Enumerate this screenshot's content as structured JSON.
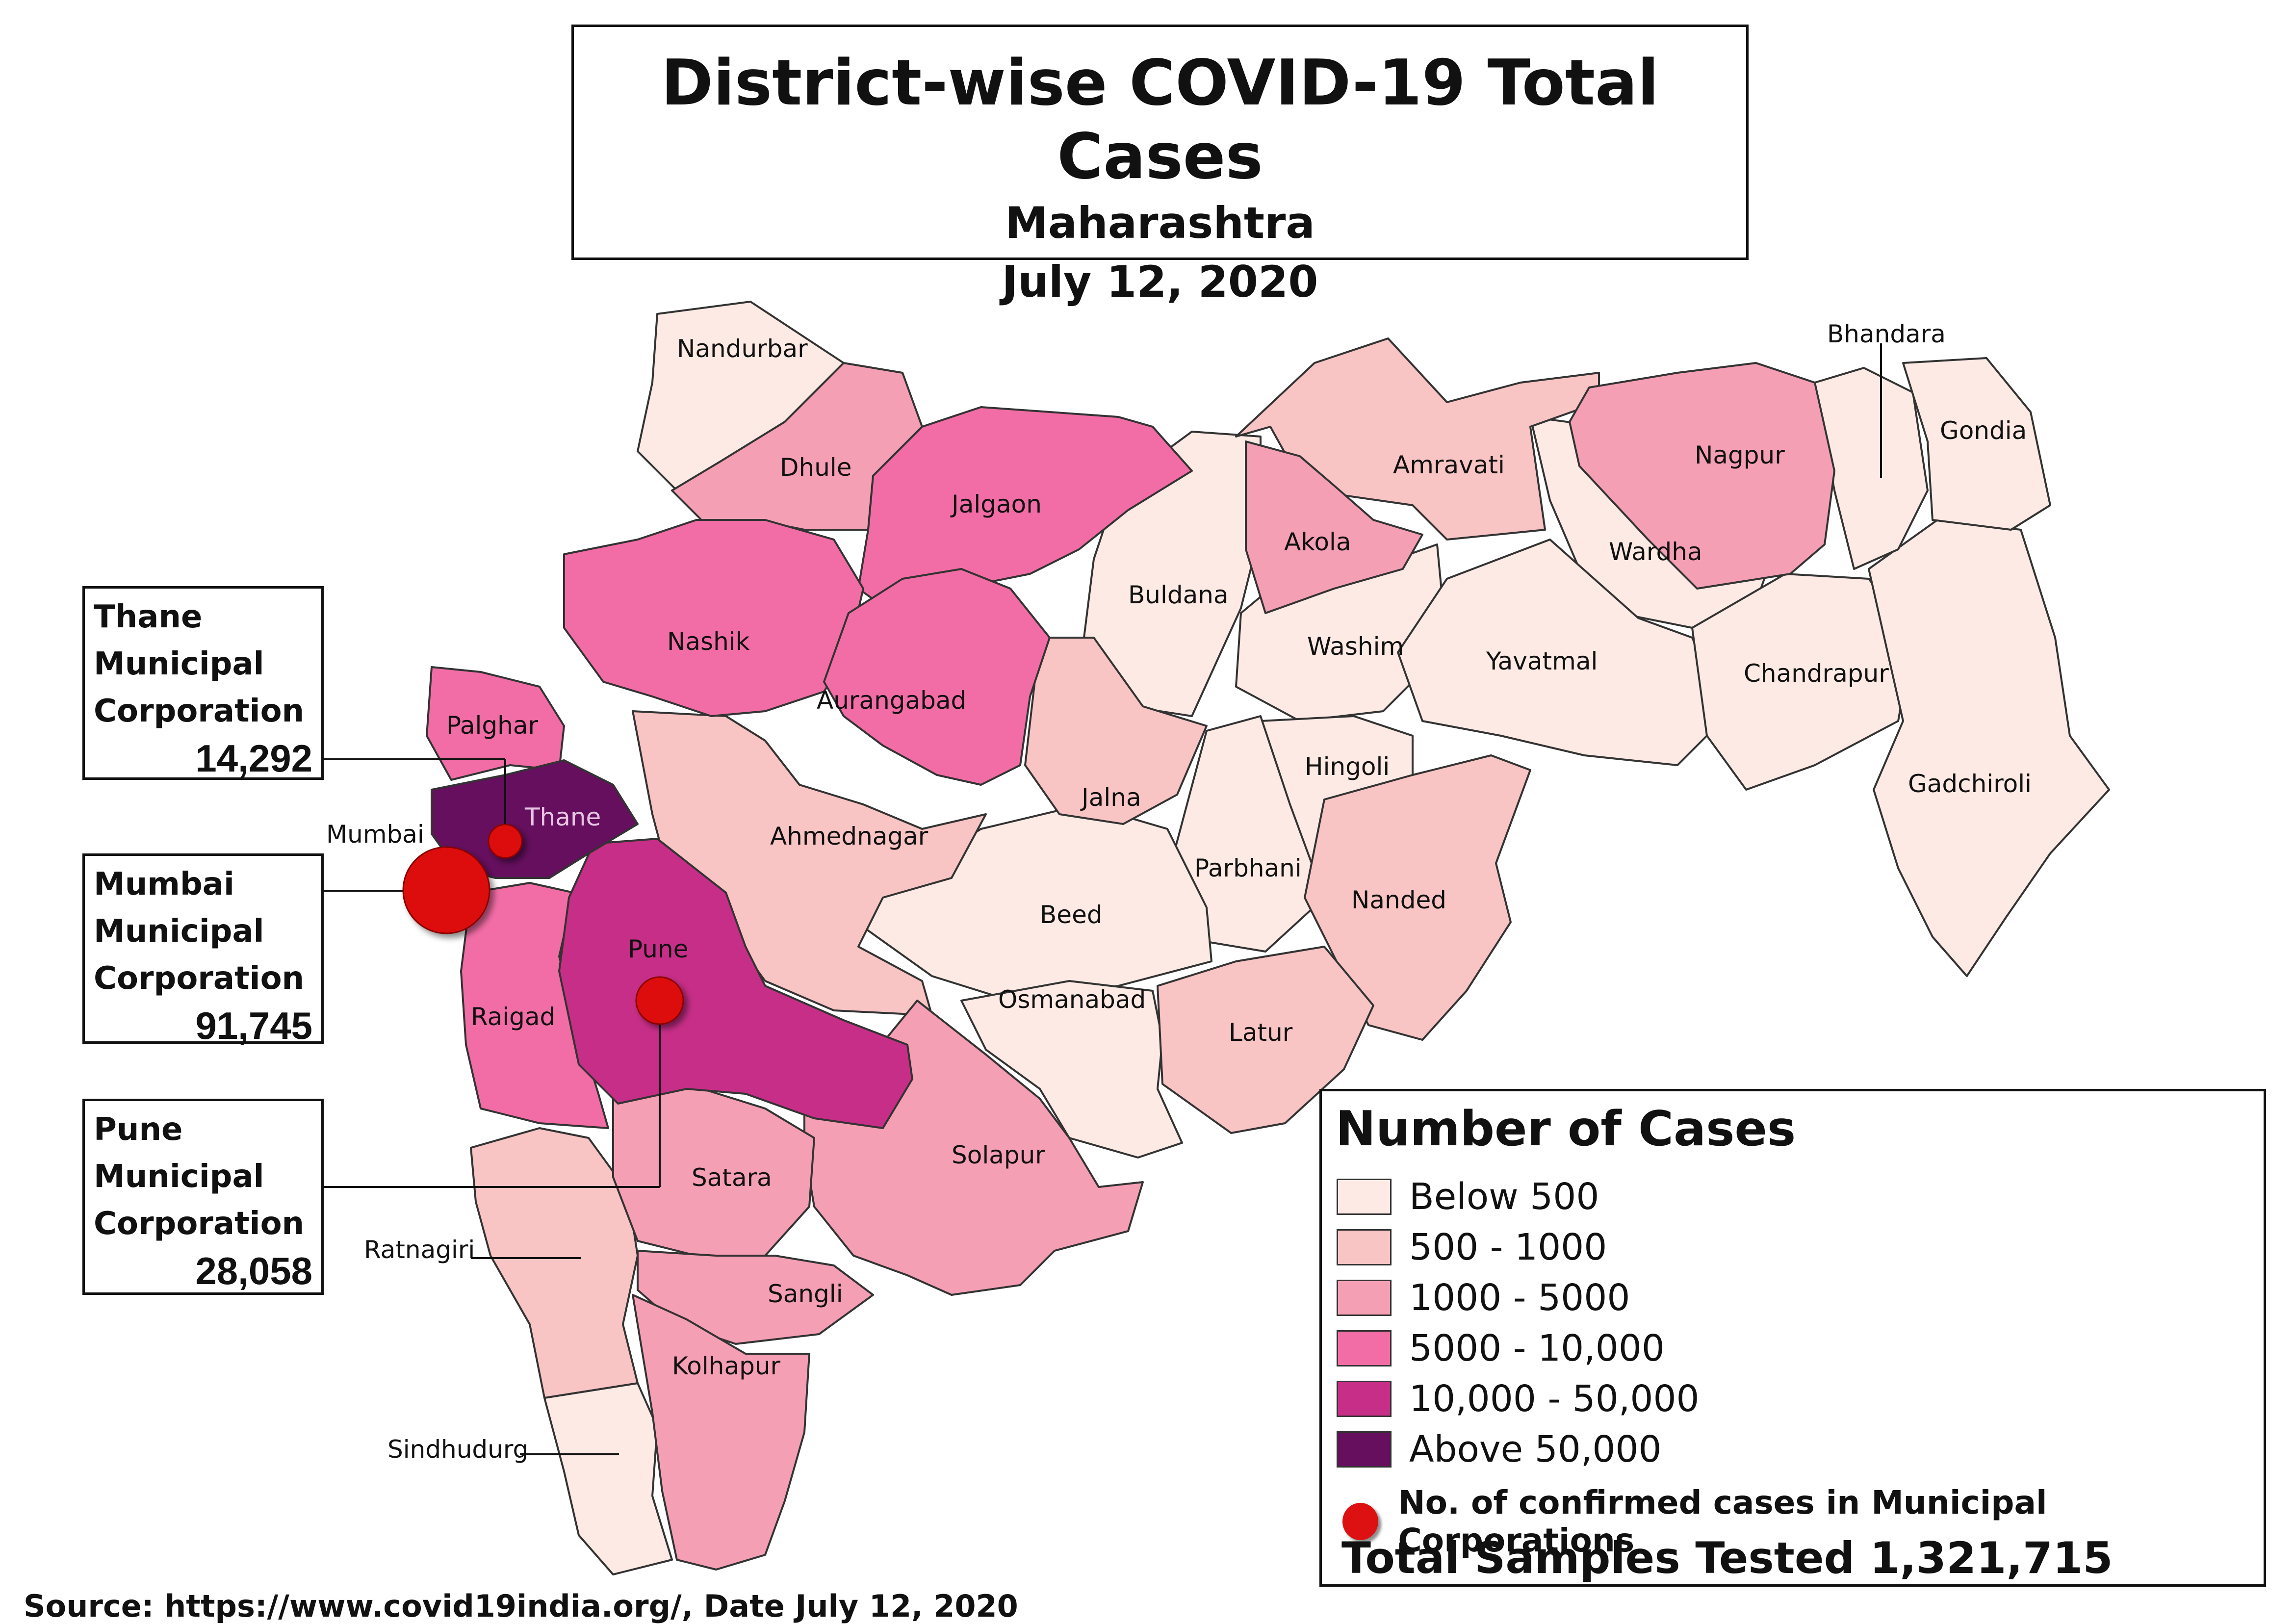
{
  "title": {
    "main": "District-wise COVID-19 Total Cases",
    "state": "Maharashtra",
    "date": "July 12, 2020"
  },
  "legend": {
    "title": "Number of Cases",
    "classes": [
      {
        "label": "Below 500",
        "color": "#fdeae4"
      },
      {
        "label": "500 - 1000",
        "color": "#f9c4c4"
      },
      {
        "label": "1000 - 5000",
        "color": "#f59fb5"
      },
      {
        "label": "5000 - 10,000",
        "color": "#f26da5"
      },
      {
        "label": "10,000 - 50,000",
        "color": "#c72e87"
      },
      {
        "label": "Above 50,000",
        "color": "#650f5e"
      }
    ],
    "marker_label": "No. of confirmed cases in Municipal Corporations",
    "marker_color": "#dd1111",
    "total": "Total Samples Tested 1,321,715"
  },
  "callouts": [
    {
      "name": "Thane\nMunicipal\nCorporation",
      "value": "14,292"
    },
    {
      "name": "Mumbai\nMunicipal\nCorporation",
      "value": "91,745"
    },
    {
      "name": "Pune\nMunicipal\nCorporation",
      "value": "28,058"
    }
  ],
  "districts": {
    "nandurbar": "Nandurbar",
    "dhule": "Dhule",
    "jalgaon": "Jalgaon",
    "nashik": "Nashik",
    "palghar": "Palghar",
    "thane": "Thane",
    "mumbai": "Mumbai",
    "raigad": "Raigad",
    "pune": "Pune",
    "ahmednagar": "Ahmednagar",
    "aurangabad": "Aurangabad",
    "jalna": "Jalna",
    "buldana": "Buldana",
    "akola": "Akola",
    "washim": "Washim",
    "amravati": "Amravati",
    "nagpur": "Nagpur",
    "bhandara": "Bhandara",
    "gondia": "Gondia",
    "wardha": "Wardha",
    "yavatmal": "Yavatmal",
    "chandrapur": "Chandrapur",
    "gadchiroli": "Gadchiroli",
    "hingoli": "Hingoli",
    "parbhani": "Parbhani",
    "nanded": "Nanded",
    "beed": "Beed",
    "osmanabad": "Osmanabad",
    "latur": "Latur",
    "solapur": "Solapur",
    "satara": "Satara",
    "sangli": "Sangli",
    "kolhapur": "Kolhapur",
    "ratnagiri": "Ratnagiri",
    "sindhudurg": "Sindhudurg"
  },
  "source": "Source: https://www.covid19india.org/, Date July 12, 2020"
}
